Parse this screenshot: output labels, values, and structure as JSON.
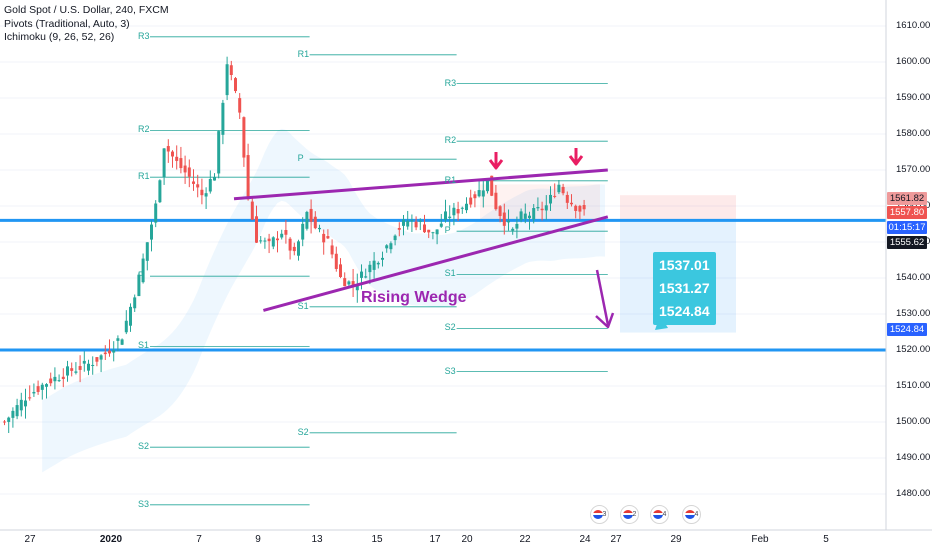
{
  "legend": {
    "symbol": "Gold Spot / U.S. Dollar, 240, FXCM",
    "pivots": "Pivots (Traditional, Auto, 3)",
    "ichimoku": "Ichimoku (9, 26, 52, 26)"
  },
  "annotation": {
    "pattern_label": "Rising Wedge",
    "targets": [
      "1537.01",
      "1531.27",
      "1524.84"
    ]
  },
  "price_badges": {
    "high": "1561.82",
    "last": "1557.80",
    "countdown": "01:15:17",
    "low": "1555.62",
    "target": "1524.84"
  },
  "events": [
    "3",
    "2",
    "4",
    "4"
  ],
  "colors": {
    "bull": "#26a69a",
    "bear": "#ef5350",
    "pivot": "#26a69a",
    "support": "#2196f3",
    "wedge": "#9c27b0",
    "arrow": "#e91e63",
    "target_box": "#3bc7df"
  },
  "chart_data": {
    "type": "candlestick",
    "symbol": "Gold Spot / U.S. Dollar",
    "timeframe": "240",
    "ylim": [
      1470,
      1615
    ],
    "y_ticks": [
      1480,
      1490,
      1500,
      1510,
      1520,
      1530,
      1540,
      1550,
      1560,
      1570,
      1580,
      1590,
      1600,
      1610
    ],
    "y_tick_labels": [
      "1480.00",
      "1490.00",
      "1500.00",
      "1510.00",
      "1520.00",
      "1530.00",
      "1540.00",
      "1550.00",
      "1560.00",
      "1570.00",
      "1580.00",
      "1590.00",
      "1600.00",
      "1610.00"
    ],
    "x_tick_labels": [
      "27",
      "2020",
      "7",
      "9",
      "13",
      "15",
      "17",
      "20",
      "22",
      "24",
      "27",
      "29",
      "Feb",
      "5"
    ],
    "bars_total": 140,
    "close_path": [
      [
        0,
        1500
      ],
      [
        5,
        1507
      ],
      [
        10,
        1511
      ],
      [
        15,
        1514
      ],
      [
        20,
        1516
      ],
      [
        24,
        1519
      ],
      [
        28,
        1524
      ],
      [
        32,
        1540
      ],
      [
        36,
        1560
      ],
      [
        38,
        1577
      ],
      [
        41,
        1572
      ],
      [
        44,
        1568
      ],
      [
        47,
        1563
      ],
      [
        50,
        1569
      ],
      [
        53,
        1600
      ],
      [
        56,
        1586
      ],
      [
        58,
        1562
      ],
      [
        60,
        1551
      ],
      [
        63,
        1549
      ],
      [
        66,
        1553
      ],
      [
        69,
        1546
      ],
      [
        72,
        1558
      ],
      [
        74,
        1554
      ],
      [
        77,
        1550
      ],
      [
        80,
        1540
      ],
      [
        83,
        1538
      ],
      [
        86,
        1542
      ],
      [
        90,
        1547
      ],
      [
        93,
        1553
      ],
      [
        96,
        1556
      ],
      [
        99,
        1555
      ],
      [
        102,
        1552
      ],
      [
        105,
        1557
      ],
      [
        108,
        1559
      ],
      [
        111,
        1562
      ],
      [
        113,
        1564
      ],
      [
        115,
        1567
      ],
      [
        117,
        1560
      ],
      [
        119,
        1556
      ],
      [
        121,
        1553
      ],
      [
        123,
        1557
      ],
      [
        126,
        1558
      ],
      [
        129,
        1560
      ],
      [
        132,
        1566
      ],
      [
        134,
        1562
      ],
      [
        136,
        1560
      ],
      [
        138,
        1558
      ]
    ],
    "pivot_levels": [
      {
        "session": 1,
        "from_bar": 35,
        "to_bar": 73,
        "levels": [
          {
            "name": "R3",
            "value": 1607
          },
          {
            "name": "R2",
            "value": 1581
          },
          {
            "name": "R1",
            "value": 1568
          },
          {
            "name": "P",
            "value": 1540.5
          },
          {
            "name": "S1",
            "value": 1521
          },
          {
            "name": "S2",
            "value": 1493
          },
          {
            "name": "S3",
            "value": 1477
          }
        ]
      },
      {
        "session": 2,
        "from_bar": 73,
        "to_bar": 108,
        "levels": [
          {
            "name": "R1",
            "value": 1602
          },
          {
            "name": "P",
            "value": 1573
          },
          {
            "name": "S1",
            "value": 1532
          },
          {
            "name": "S2",
            "value": 1497
          }
        ]
      },
      {
        "session": 3,
        "from_bar": 108,
        "to_bar": 144,
        "levels": [
          {
            "name": "R3",
            "value": 1594
          },
          {
            "name": "R2",
            "value": 1578
          },
          {
            "name": "R1",
            "value": 1567
          },
          {
            "name": "P",
            "value": 1553
          },
          {
            "name": "S1",
            "value": 1541
          },
          {
            "name": "S2",
            "value": 1526
          },
          {
            "name": "S3",
            "value": 1514
          }
        ]
      }
    ],
    "horizontal_lines": [
      1556,
      1520
    ],
    "wedge": {
      "upper": [
        [
          55,
          1562
        ],
        [
          144,
          1570
        ]
      ],
      "lower": [
        [
          62,
          1531
        ],
        [
          144,
          1557
        ]
      ]
    },
    "annotations": [
      "Rising Wedge",
      "1537.01",
      "1531.27",
      "1524.84"
    ]
  }
}
